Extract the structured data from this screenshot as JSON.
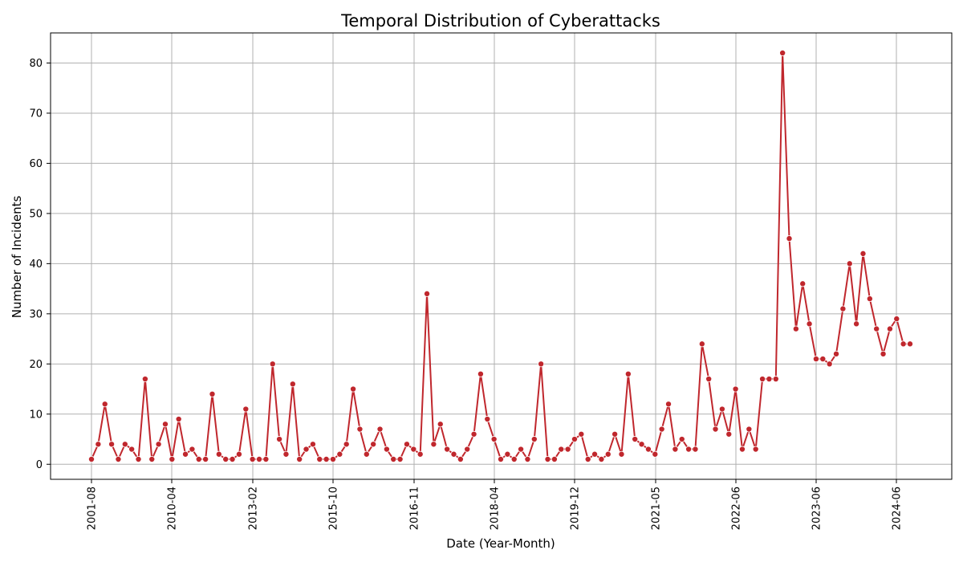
{
  "chart_data": {
    "type": "line",
    "title": "Temporal Distribution of Cyberattacks",
    "xlabel": "Date (Year-Month)",
    "ylabel": "Number of Incidents",
    "ylim": [
      -3,
      86
    ],
    "yticks": [
      0,
      10,
      20,
      30,
      40,
      50,
      60,
      70,
      80
    ],
    "xticks": [
      "2001-08",
      "2010-04",
      "2013-02",
      "2015-10",
      "2016-11",
      "2018-04",
      "2019-12",
      "2021-05",
      "2022-06",
      "2023-06",
      "2024-06"
    ],
    "grid": true,
    "marker": "circle",
    "color": "#c0272d",
    "series": [
      {
        "values": [
          1,
          4,
          12,
          4,
          1,
          4,
          3,
          1,
          17,
          1,
          4,
          8,
          1,
          9,
          2,
          3,
          1,
          1,
          14,
          2,
          1,
          1,
          2,
          11,
          1,
          1,
          1,
          20,
          5,
          2,
          16,
          1,
          3,
          4,
          1,
          1,
          1,
          2,
          4,
          15,
          7,
          2,
          4,
          7,
          3,
          1,
          1,
          4,
          3,
          2,
          34,
          4,
          8,
          3,
          2,
          1,
          3,
          6,
          18,
          9,
          5,
          1,
          2,
          1,
          3,
          1,
          5,
          20,
          1,
          1,
          3,
          3,
          5,
          6,
          1,
          2,
          1,
          2,
          6,
          2,
          18,
          5,
          4,
          3,
          2,
          7,
          12,
          3,
          5,
          3,
          3,
          24,
          17,
          7,
          11,
          6,
          15,
          3,
          7,
          3,
          17,
          17,
          17,
          82,
          45,
          27,
          36,
          28,
          21,
          21,
          20,
          22,
          31,
          40,
          28,
          42,
          33,
          27,
          22,
          27,
          29,
          24,
          24
        ]
      }
    ]
  }
}
